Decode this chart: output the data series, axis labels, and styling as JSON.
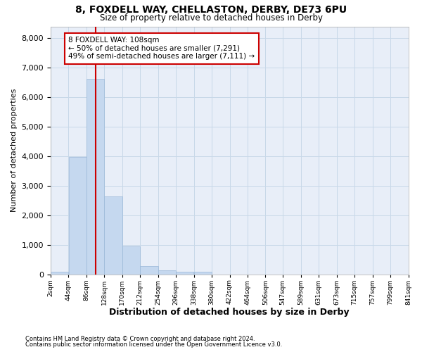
{
  "title1": "8, FOXDELL WAY, CHELLASTON, DERBY, DE73 6PU",
  "title2": "Size of property relative to detached houses in Derby",
  "xlabel": "Distribution of detached houses by size in Derby",
  "ylabel": "Number of detached properties",
  "footnote1": "Contains HM Land Registry data © Crown copyright and database right 2024.",
  "footnote2": "Contains public sector information licensed under the Open Government Licence v3.0.",
  "bin_edges": [
    2,
    44,
    86,
    128,
    170,
    212,
    254,
    296,
    338,
    380,
    422,
    464,
    506,
    547,
    589,
    631,
    673,
    715,
    757,
    799,
    841
  ],
  "bar_heights": [
    75,
    3980,
    6620,
    2630,
    950,
    285,
    120,
    90,
    80,
    0,
    0,
    0,
    0,
    0,
    0,
    0,
    0,
    0,
    0,
    0
  ],
  "bar_color": "#c5d8ef",
  "bar_edge_color": "#9ab8d8",
  "vline_x": 108,
  "vline_color": "#cc0000",
  "annotation_line1": "8 FOXDELL WAY: 108sqm",
  "annotation_line2": "← 50% of detached houses are smaller (7,291)",
  "annotation_line3": "49% of semi-detached houses are larger (7,111) →",
  "annotation_box_color": "#cc0000",
  "annotation_fill": "white",
  "ylim": [
    0,
    8400
  ],
  "yticks": [
    0,
    1000,
    2000,
    3000,
    4000,
    5000,
    6000,
    7000,
    8000
  ],
  "grid_color": "#c8d8e8",
  "plot_bg": "#e8eef8",
  "tick_labels": [
    "2sqm",
    "44sqm",
    "86sqm",
    "128sqm",
    "170sqm",
    "212sqm",
    "254sqm",
    "296sqm",
    "338sqm",
    "380sqm",
    "422sqm",
    "464sqm",
    "506sqm",
    "547sqm",
    "589sqm",
    "631sqm",
    "673sqm",
    "715sqm",
    "757sqm",
    "799sqm",
    "841sqm"
  ]
}
